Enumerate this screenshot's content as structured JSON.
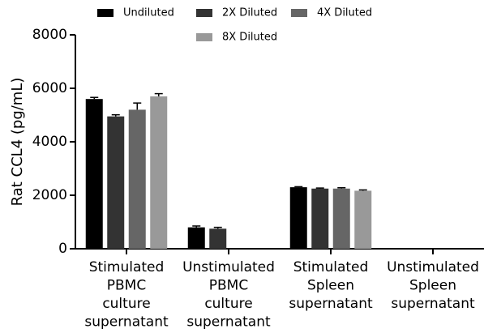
{
  "chart_data": {
    "type": "bar",
    "y_label": "Rat CCL4 (pg/mL)",
    "categories": [
      [
        "Stimulated",
        "PBMC",
        "culture",
        "supernatant"
      ],
      [
        "Unstimulated",
        "PBMC",
        "culture",
        "supernatant"
      ],
      [
        "Stimulated",
        "Spleen",
        "supernatant"
      ],
      [
        "Unstimulated",
        "Spleen",
        "supernatant"
      ]
    ],
    "series": [
      {
        "name": "Undiluted",
        "color": "#000000",
        "values": [
          5600,
          800,
          2300,
          null
        ],
        "errors": [
          60,
          50,
          20,
          null
        ]
      },
      {
        "name": "2X Diluted",
        "color": "#333333",
        "values": [
          4950,
          750,
          2250,
          null
        ],
        "errors": [
          60,
          50,
          20,
          null
        ]
      },
      {
        "name": "4X Diluted",
        "color": "#666666",
        "values": [
          5200,
          null,
          2250,
          null
        ],
        "errors": [
          250,
          null,
          30,
          null
        ]
      },
      {
        "name": "8X Diluted",
        "color": "#999999",
        "values": [
          5700,
          null,
          2170,
          null
        ],
        "errors": [
          100,
          null,
          30,
          null
        ]
      }
    ],
    "ylim": [
      0,
      8000
    ],
    "yticks": [
      0,
      2000,
      4000,
      6000,
      8000
    ]
  }
}
